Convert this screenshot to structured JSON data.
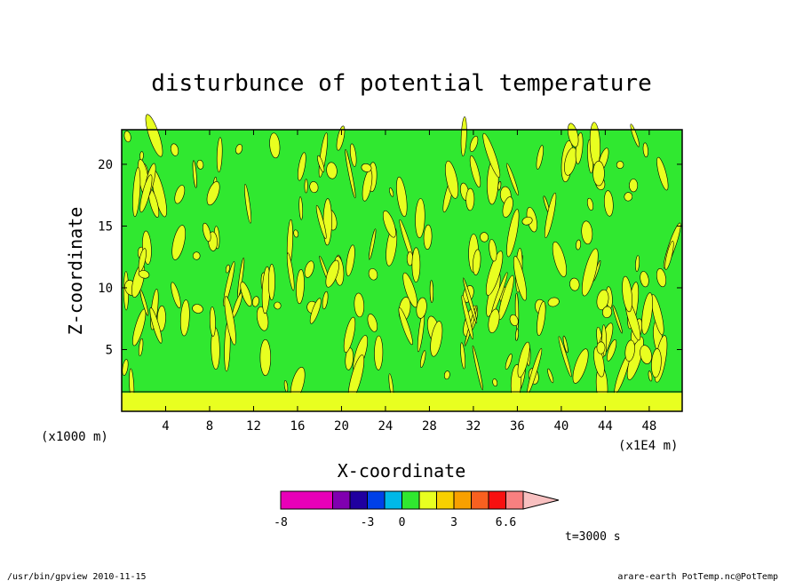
{
  "chart_data": {
    "type": "heatmap",
    "title": "disturbunce of potential temperature",
    "xlabel": "X-coordinate",
    "ylabel": "Z-coordinate",
    "x_unit_left": "(x1000 m)",
    "x_unit_right": "(x1E4 m)",
    "x_ticks": [
      4,
      8,
      12,
      16,
      20,
      24,
      28,
      32,
      36,
      40,
      44,
      48
    ],
    "y_ticks": [
      5,
      10,
      15,
      20
    ],
    "xlim": [
      0,
      51
    ],
    "ylim": [
      0,
      22.8
    ],
    "ground_layer_top": 1.5,
    "colorbar": {
      "labels": [
        "-8",
        "-3",
        "0",
        "3",
        "6.6"
      ],
      "label_positions": [
        0,
        5,
        7,
        10,
        13
      ],
      "n_boxes": 14,
      "colors": [
        "#e800b8",
        "#e800b8",
        "#e800b8",
        "#8000b0",
        "#2000a0",
        "#0040e8",
        "#00b8e8",
        "#30e830",
        "#e8ff20",
        "#f8d000",
        "#f8a000",
        "#f86020",
        "#f81010",
        "#f88080"
      ],
      "arrow_color": "#f8c0c0"
    },
    "field_colors": {
      "zero_band": "#30e830",
      "positive_band": "#e8ff20"
    },
    "time_label": "t=3000 s"
  },
  "footer": {
    "left": "/usr/bin/gpview  2010-11-15",
    "right": "arare-earth_PotTemp.nc@PotTemp"
  }
}
